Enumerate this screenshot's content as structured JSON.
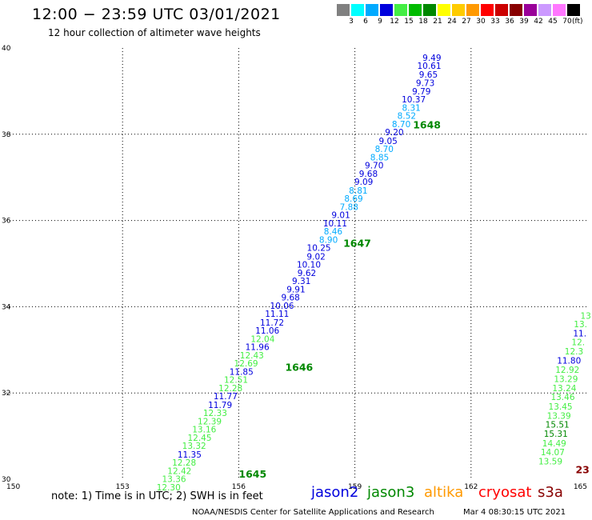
{
  "title": "12:00 − 23:59 UTC 03/01/2021",
  "subtitle": "12 hour collection of altimeter wave heights",
  "colorbar": {
    "colors": [
      "#808080",
      "#00ffff",
      "#00aaff",
      "#0000dd",
      "#44ee44",
      "#00bb00",
      "#008800",
      "#ffff00",
      "#ffcc00",
      "#ff9900",
      "#ff0000",
      "#cc0000",
      "#880000",
      "#990099",
      "#cc99ff",
      "#ff77ff",
      "#000000"
    ],
    "ticks": [
      "3",
      "6",
      "9",
      "12",
      "15",
      "18",
      "21",
      "24",
      "27",
      "30",
      "33",
      "36",
      "39",
      "42",
      "45",
      "70"
    ],
    "unit": "(ft)"
  },
  "note": "note:  1) Time is in UTC; 2) SWH is in feet",
  "satellites": [
    {
      "name": "jason2",
      "color": "#0000dd"
    },
    {
      "name": "jason3",
      "color": "#008800"
    },
    {
      "name": "altika",
      "color": "#ff9900"
    },
    {
      "name": "cryosat",
      "color": "#ff0000"
    },
    {
      "name": "s3a",
      "color": "#880000"
    }
  ],
  "credit": "NOAA/NESDIS Center for Satellite Applications and Research",
  "timestamp": "Mar  4 08:30:15 UTC 2021",
  "chart_data": {
    "type": "scatter",
    "x_ticks": [
      "150",
      "153",
      "156",
      "159",
      "162",
      "165"
    ],
    "y_ticks": [
      "30",
      "32",
      "34",
      "36",
      "38",
      "40"
    ],
    "xlim": [
      150,
      165
    ],
    "ylim": [
      30,
      40
    ],
    "grid": true,
    "track_labels": [
      {
        "text": "1645",
        "lon": 156.0,
        "lat": 30.1,
        "color": "#008800"
      },
      {
        "text": "1646",
        "lon": 157.2,
        "lat": 32.58,
        "color": "#008800"
      },
      {
        "text": "1647",
        "lon": 158.7,
        "lat": 35.45,
        "color": "#008800"
      },
      {
        "text": "1648",
        "lon": 160.5,
        "lat": 38.2,
        "color": "#008800"
      },
      {
        "text": "23",
        "lon": 164.7,
        "lat": 30.2,
        "color": "#880000"
      }
    ],
    "points": [
      {
        "text": "9.49",
        "lon": 161.23,
        "lat": 39.76,
        "color": "#0000dd"
      },
      {
        "text": "10.61",
        "lon": 161.23,
        "lat": 39.57,
        "color": "#0000dd"
      },
      {
        "text": "9.65",
        "lon": 161.14,
        "lat": 39.37,
        "color": "#0000dd"
      },
      {
        "text": "9.73",
        "lon": 161.06,
        "lat": 39.17,
        "color": "#0000dd"
      },
      {
        "text": "9.79",
        "lon": 160.96,
        "lat": 38.98,
        "color": "#0000dd"
      },
      {
        "text": "10.37",
        "lon": 160.83,
        "lat": 38.79,
        "color": "#0000dd"
      },
      {
        "text": "8.31",
        "lon": 160.7,
        "lat": 38.6,
        "color": "#00aaff"
      },
      {
        "text": "8.52",
        "lon": 160.58,
        "lat": 38.41,
        "color": "#00aaff"
      },
      {
        "text": "8.70",
        "lon": 160.44,
        "lat": 38.22,
        "color": "#00aaff"
      },
      {
        "text": "9.20",
        "lon": 160.26,
        "lat": 38.03,
        "color": "#0000dd"
      },
      {
        "text": "9.05",
        "lon": 160.1,
        "lat": 37.83,
        "color": "#0000dd"
      },
      {
        "text": "8.70",
        "lon": 160.0,
        "lat": 37.64,
        "color": "#00aaff"
      },
      {
        "text": "8.85",
        "lon": 159.88,
        "lat": 37.45,
        "color": "#00aaff"
      },
      {
        "text": "9.70",
        "lon": 159.74,
        "lat": 37.26,
        "color": "#0000dd"
      },
      {
        "text": "9.68",
        "lon": 159.59,
        "lat": 37.07,
        "color": "#0000dd"
      },
      {
        "text": "9.09",
        "lon": 159.47,
        "lat": 36.88,
        "color": "#0000dd"
      },
      {
        "text": "8.81",
        "lon": 159.33,
        "lat": 36.68,
        "color": "#00aaff"
      },
      {
        "text": "8.69",
        "lon": 159.21,
        "lat": 36.49,
        "color": "#00aaff"
      },
      {
        "text": "7.88",
        "lon": 159.09,
        "lat": 36.3,
        "color": "#00aaff"
      },
      {
        "text": "9.01",
        "lon": 158.88,
        "lat": 36.11,
        "color": "#0000dd"
      },
      {
        "text": "10.11",
        "lon": 158.8,
        "lat": 35.92,
        "color": "#0000dd"
      },
      {
        "text": "8.46",
        "lon": 158.68,
        "lat": 35.73,
        "color": "#00aaff"
      },
      {
        "text": "8.90",
        "lon": 158.56,
        "lat": 35.54,
        "color": "#00aaff"
      },
      {
        "text": "10.25",
        "lon": 158.38,
        "lat": 35.35,
        "color": "#0000dd"
      },
      {
        "text": "9.02",
        "lon": 158.24,
        "lat": 35.15,
        "color": "#0000dd"
      },
      {
        "text": "10.10",
        "lon": 158.12,
        "lat": 34.96,
        "color": "#0000dd"
      },
      {
        "text": "9.62",
        "lon": 158.0,
        "lat": 34.77,
        "color": "#0000dd"
      },
      {
        "text": "9.31",
        "lon": 157.86,
        "lat": 34.58,
        "color": "#0000dd"
      },
      {
        "text": "9.91",
        "lon": 157.72,
        "lat": 34.39,
        "color": "#0000dd"
      },
      {
        "text": "9.68",
        "lon": 157.58,
        "lat": 34.2,
        "color": "#0000dd"
      },
      {
        "text": "10.06",
        "lon": 157.43,
        "lat": 34.01,
        "color": "#0000dd"
      },
      {
        "text": "11.11",
        "lon": 157.3,
        "lat": 33.82,
        "color": "#0000dd"
      },
      {
        "text": "11.72",
        "lon": 157.17,
        "lat": 33.62,
        "color": "#0000dd"
      },
      {
        "text": "11.06",
        "lon": 157.05,
        "lat": 33.43,
        "color": "#0000dd"
      },
      {
        "text": "12.04",
        "lon": 156.93,
        "lat": 33.24,
        "color": "#44ee44"
      },
      {
        "text": "11.96",
        "lon": 156.79,
        "lat": 33.05,
        "color": "#0000dd"
      },
      {
        "text": "12.43",
        "lon": 156.65,
        "lat": 32.86,
        "color": "#44ee44"
      },
      {
        "text": "12.69",
        "lon": 156.5,
        "lat": 32.67,
        "color": "#44ee44"
      },
      {
        "text": "11.85",
        "lon": 156.38,
        "lat": 32.48,
        "color": "#0000dd"
      },
      {
        "text": "12.51",
        "lon": 156.24,
        "lat": 32.29,
        "color": "#44ee44"
      },
      {
        "text": "12.28",
        "lon": 156.1,
        "lat": 32.1,
        "color": "#44ee44"
      },
      {
        "text": "11.77",
        "lon": 155.97,
        "lat": 31.91,
        "color": "#0000dd"
      },
      {
        "text": "11.79",
        "lon": 155.83,
        "lat": 31.71,
        "color": "#0000dd"
      },
      {
        "text": "12.33",
        "lon": 155.7,
        "lat": 31.52,
        "color": "#44ee44"
      },
      {
        "text": "12.39",
        "lon": 155.56,
        "lat": 31.33,
        "color": "#44ee44"
      },
      {
        "text": "13.16",
        "lon": 155.42,
        "lat": 31.14,
        "color": "#44ee44"
      },
      {
        "text": "12.45",
        "lon": 155.3,
        "lat": 30.95,
        "color": "#44ee44"
      },
      {
        "text": "13.32",
        "lon": 155.16,
        "lat": 30.76,
        "color": "#44ee44"
      },
      {
        "text": "11.35",
        "lon": 155.04,
        "lat": 30.56,
        "color": "#0000dd"
      },
      {
        "text": "12.28",
        "lon": 154.9,
        "lat": 30.37,
        "color": "#44ee44"
      },
      {
        "text": "12.42",
        "lon": 154.78,
        "lat": 30.18,
        "color": "#44ee44"
      },
      {
        "text": "13.36",
        "lon": 154.64,
        "lat": 29.99,
        "color": "#44ee44"
      },
      {
        "text": "12.30",
        "lon": 154.5,
        "lat": 29.8,
        "color": "#44ee44"
      },
      {
        "text": "13",
        "lon": 165.1,
        "lat": 33.78,
        "color": "#44ee44"
      },
      {
        "text": "13.",
        "lon": 165.0,
        "lat": 33.58,
        "color": "#44ee44"
      },
      {
        "text": "11.",
        "lon": 164.98,
        "lat": 33.37,
        "color": "#0000dd"
      },
      {
        "text": "12.",
        "lon": 164.94,
        "lat": 33.16,
        "color": "#44ee44"
      },
      {
        "text": "12.3",
        "lon": 164.9,
        "lat": 32.95,
        "color": "#44ee44"
      },
      {
        "text": "11.80",
        "lon": 164.84,
        "lat": 32.74,
        "color": "#0000dd"
      },
      {
        "text": "12.92",
        "lon": 164.8,
        "lat": 32.52,
        "color": "#44ee44"
      },
      {
        "text": "13.29",
        "lon": 164.76,
        "lat": 32.31,
        "color": "#44ee44"
      },
      {
        "text": "13.24",
        "lon": 164.72,
        "lat": 32.1,
        "color": "#44ee44"
      },
      {
        "text": "13.46",
        "lon": 164.68,
        "lat": 31.89,
        "color": "#44ee44"
      },
      {
        "text": "13.45",
        "lon": 164.62,
        "lat": 31.67,
        "color": "#44ee44"
      },
      {
        "text": "13.39",
        "lon": 164.58,
        "lat": 31.46,
        "color": "#44ee44"
      },
      {
        "text": "15.51",
        "lon": 164.54,
        "lat": 31.25,
        "color": "#008800"
      },
      {
        "text": "15.31",
        "lon": 164.5,
        "lat": 31.04,
        "color": "#008800"
      },
      {
        "text": "14.49",
        "lon": 164.46,
        "lat": 30.82,
        "color": "#44ee44"
      },
      {
        "text": "14.07",
        "lon": 164.42,
        "lat": 30.61,
        "color": "#44ee44"
      },
      {
        "text": "13.59",
        "lon": 164.36,
        "lat": 30.4,
        "color": "#44ee44"
      }
    ]
  }
}
